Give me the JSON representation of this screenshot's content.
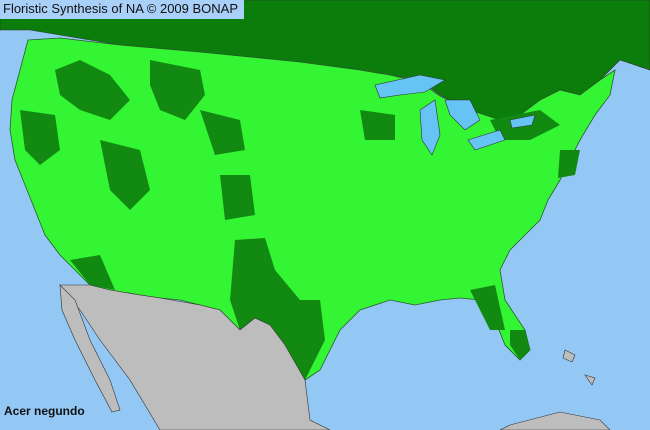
{
  "header": {
    "title": "Floristic Synthesis of NA © 2009 BONAP"
  },
  "map": {
    "species_label": "Acer negundo",
    "colors": {
      "ocean": "#94c8f4",
      "canada": "#0a7d0a",
      "present_county": "#33f533",
      "absent_county": "#128a12",
      "mexico": "#bdbdbd",
      "lakes": "#66c4f4",
      "borders": "#333333"
    }
  }
}
